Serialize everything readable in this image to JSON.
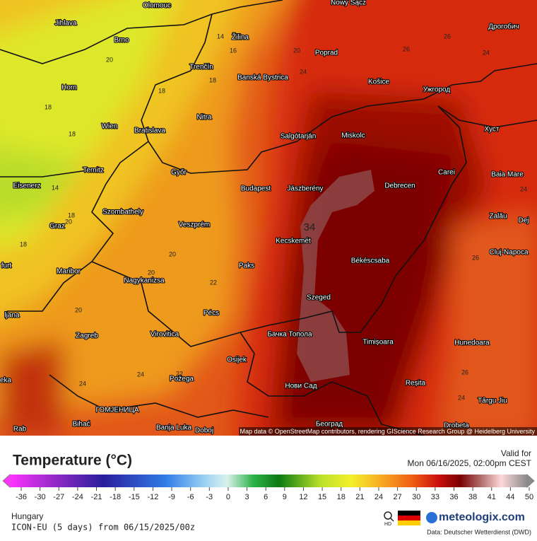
{
  "map": {
    "cities": [
      "Olomouc",
      "Nowy Sącz",
      "Jihlava",
      "Дрогобич",
      "Brno",
      "Žilina",
      "Poprad",
      "Trenčín",
      "Banská Bystrica",
      "Košice",
      "Ужгород",
      "Horn",
      "Nitra",
      "Хуст",
      "Wien",
      "Bratislava",
      "Salgótarján",
      "Miskolc",
      "Ternitz",
      "Győr",
      "Carei",
      "Baia Mare",
      "Eisenerz",
      "Budapest",
      "Jászberény",
      "Debrecen",
      "Szombathely",
      "Zalău",
      "Graz",
      "Veszprém",
      "Dej",
      "Kecskemét",
      "Cluj-Napoca",
      "Maribor",
      "Paks",
      "Békéscsaba",
      "Nagykanizsa",
      "Szeged",
      "Pécs",
      "Zagreb",
      "Virovitica",
      "Бачка Топола",
      "Timișoara",
      "Hunedoara",
      "Osijek",
      "Požega",
      "Reșita",
      "Нови Сад",
      "Târgu Jiu",
      "Bihać",
      "ГОМЈЕНИЦА",
      "Banja Luka",
      "Doboj",
      "Београд",
      "Drobeta",
      "ljana",
      "furt",
      "eka",
      "Rab"
    ],
    "isotherm_labels": [
      20,
      18,
      18,
      14,
      16,
      18,
      18,
      20,
      24,
      26,
      24,
      26,
      14,
      18,
      20,
      18,
      20,
      20,
      22,
      20,
      24,
      22,
      24,
      24,
      26,
      26,
      24,
      34
    ],
    "attribution": "Map data © OpenStreetMap contributors, rendering GIScience Research Group @ Heidelberg University"
  },
  "legend": {
    "title": "Temperature (°C)",
    "ticks": [
      -36,
      -30,
      -27,
      -24,
      -21,
      -18,
      -15,
      -12,
      -9,
      -6,
      -3,
      0,
      3,
      6,
      9,
      12,
      15,
      18,
      21,
      24,
      27,
      30,
      33,
      36,
      38,
      41,
      44,
      50
    ]
  },
  "header": {
    "valid_label": "Valid for",
    "valid_time": "Mon 06/16/2025, 02:00pm CEST"
  },
  "footer": {
    "region": "Hungary",
    "model": "ICON-EU (5 days) from 06/15/2025/00z",
    "hd": "HD",
    "brand": "meteologix.com",
    "source": "Data: Deutscher Wetterdienst (DWD)"
  }
}
